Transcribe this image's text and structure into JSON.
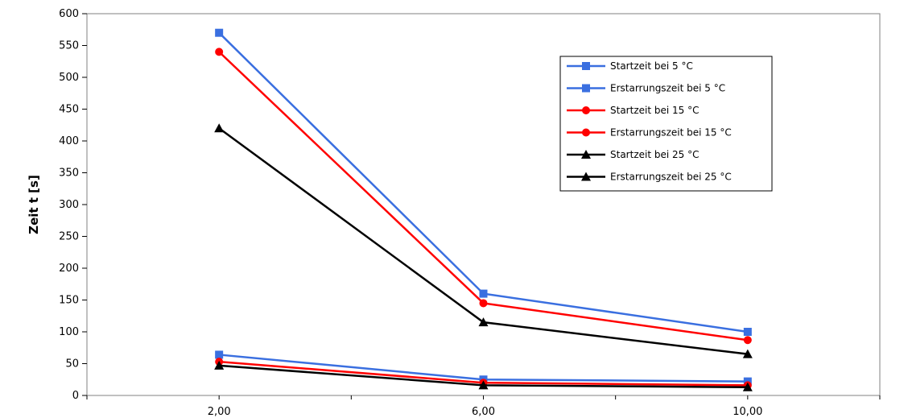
{
  "chart_data": {
    "type": "line",
    "title": "",
    "xlabel": "",
    "ylabel": "Zeit t [s]",
    "x": [
      2,
      6,
      10
    ],
    "x_tick_labels": [
      "2,00",
      "6,00",
      "10,00"
    ],
    "xlim": [
      0,
      12
    ],
    "ylim": [
      0,
      600
    ],
    "y_ticks": [
      0,
      50,
      100,
      150,
      200,
      250,
      300,
      350,
      400,
      450,
      500,
      550,
      600
    ],
    "grid": false,
    "legend_position": "top-right",
    "series": [
      {
        "name": "Startzeit bei 5 °C",
        "values": [
          570,
          160,
          100
        ],
        "color": "#3a6fe0",
        "marker": "square"
      },
      {
        "name": "Erstarrungszeit bei 5 °C",
        "values": [
          64,
          25,
          22
        ],
        "color": "#3a6fe0",
        "marker": "square"
      },
      {
        "name": "Startzeit bei 15 °C",
        "values": [
          540,
          145,
          87
        ],
        "color": "#ff0000",
        "marker": "circle"
      },
      {
        "name": "Erstarrungszeit bei 15 °C",
        "values": [
          53,
          20,
          16
        ],
        "color": "#ff0000",
        "marker": "circle"
      },
      {
        "name": "Startzeit bei 25 °C",
        "values": [
          420,
          115,
          65
        ],
        "color": "#000000",
        "marker": "triangle"
      },
      {
        "name": "Erstarrungszeit bei 25 °C",
        "values": [
          47,
          16,
          13
        ],
        "color": "#000000",
        "marker": "triangle"
      }
    ]
  }
}
